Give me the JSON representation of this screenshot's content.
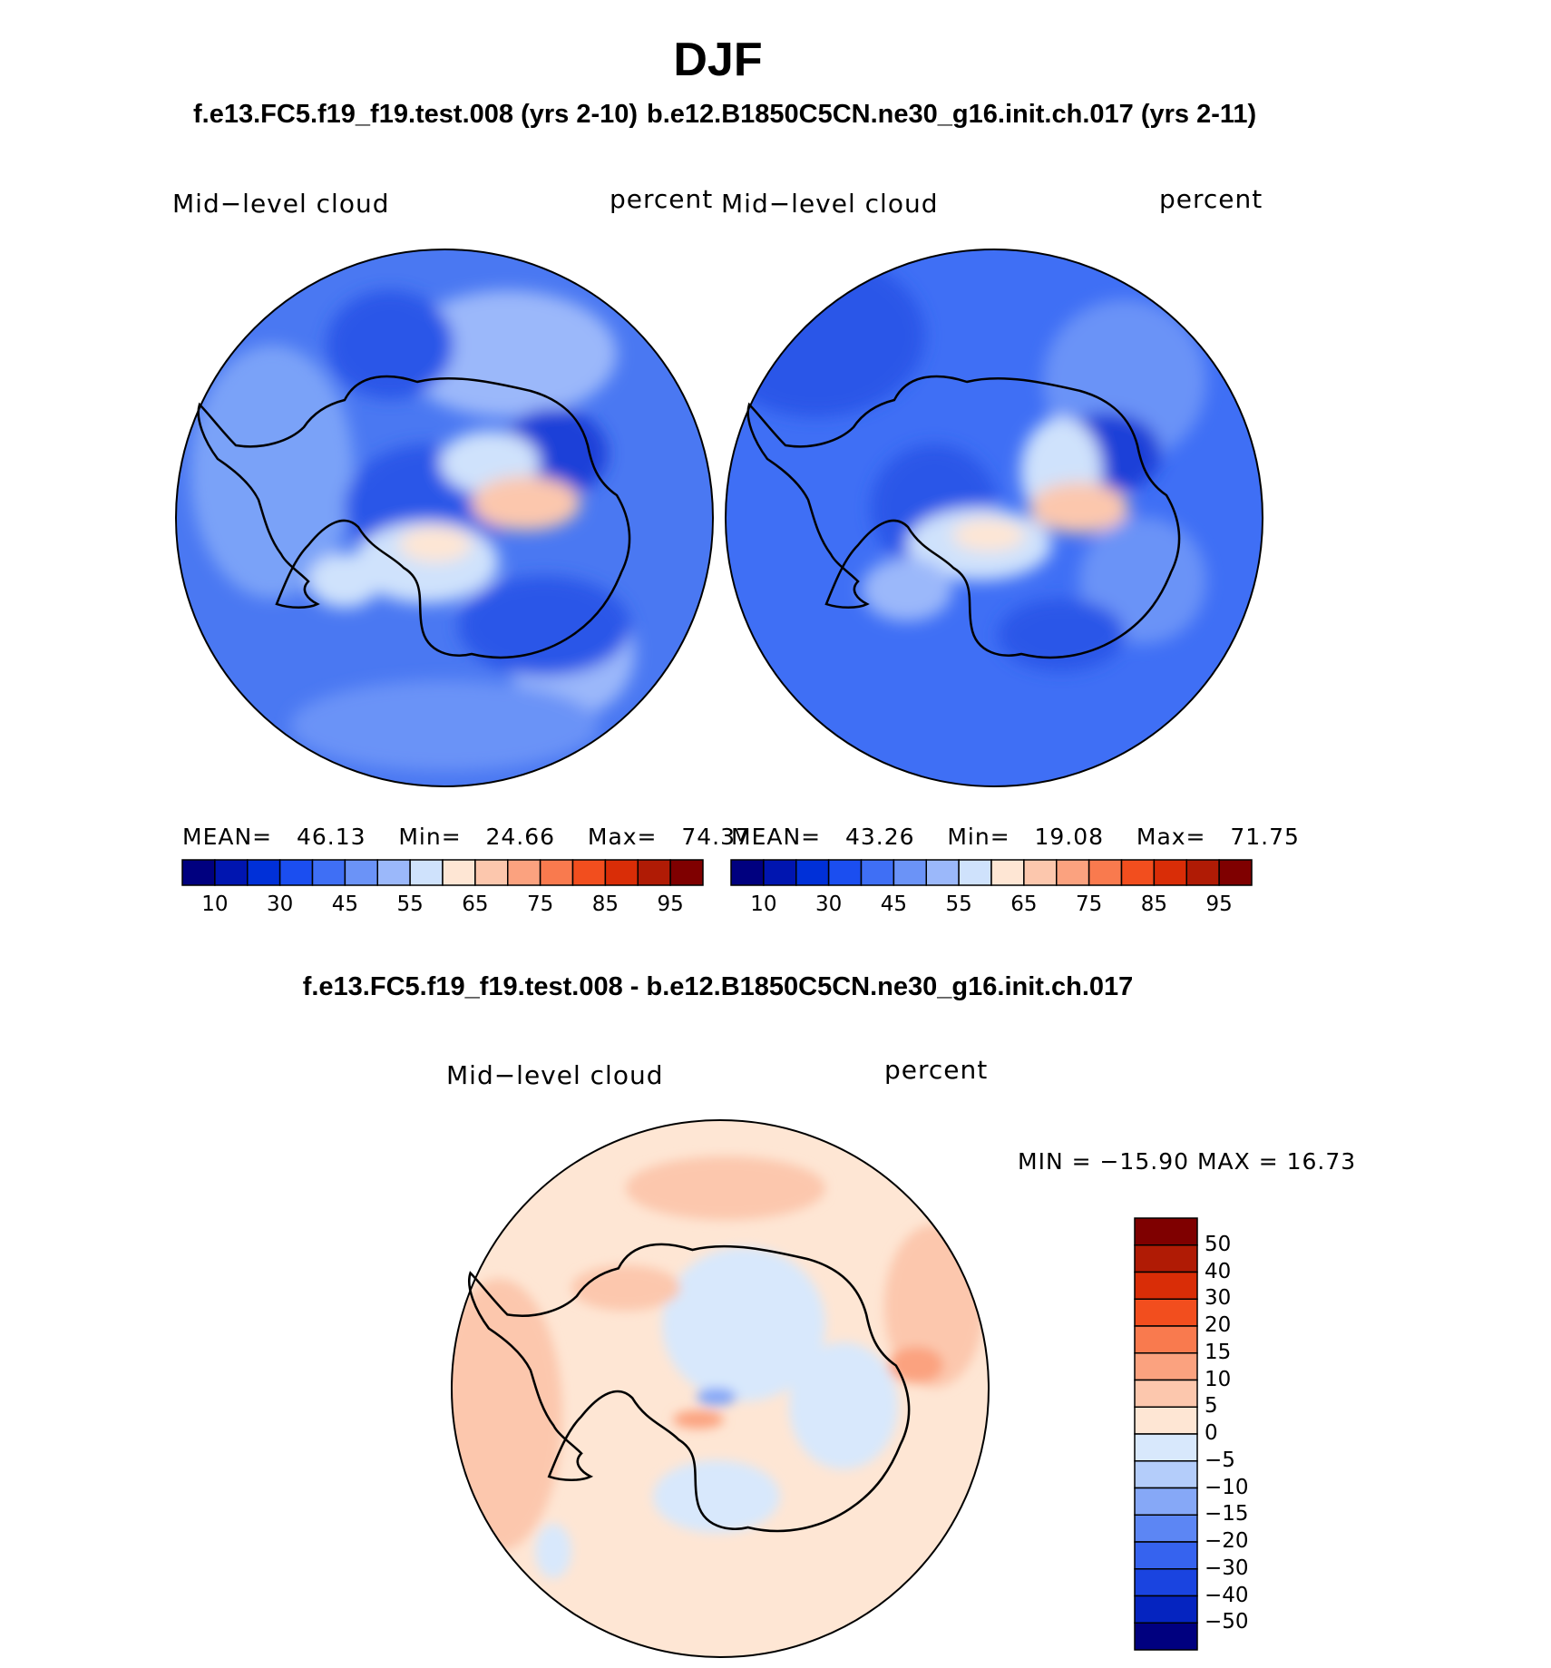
{
  "season_title": "DJF",
  "panels": [
    {
      "run_title": "f.e13.FC5.f19_f19.test.008 (yrs 2-10)",
      "variable": "Mid−level cloud",
      "units": "percent",
      "stats": {
        "mean_label": "MEAN=",
        "mean": "46.13",
        "min_label": "Min=",
        "min": "24.66",
        "max_label": "Max=",
        "max": "74.37"
      }
    },
    {
      "run_title": "b.e12.B1850C5CN.ne30_g16.init.ch.017 (yrs 2-11)",
      "variable": "Mid−level cloud",
      "units": "percent",
      "stats": {
        "mean_label": "MEAN=",
        "mean": "43.26",
        "min_label": "Min=",
        "min": "19.08",
        "max_label": "Max=",
        "max": "71.75"
      }
    }
  ],
  "abs_colorbar": {
    "colors": [
      "#00007f",
      "#0015b0",
      "#0030d8",
      "#1b4ef0",
      "#3f6ff5",
      "#6b93f7",
      "#9bb8fa",
      "#cfe2fc",
      "#fee6d4",
      "#fcc7ad",
      "#fba27f",
      "#f97a4e",
      "#f24e1e",
      "#d92d07",
      "#b01b05",
      "#7f0000"
    ],
    "tick_labels": [
      "10",
      "30",
      "45",
      "55",
      "65",
      "75",
      "85",
      "95"
    ]
  },
  "difference": {
    "title": "f.e13.FC5.f19_f19.test.008 - b.e12.B1850C5CN.ne30_g16.init.ch.017",
    "variable": "Mid−level cloud",
    "units": "percent",
    "minmax": "MIN = −15.90 MAX =  16.73",
    "colorbar": {
      "colors_top_to_bottom": [
        "#7f0000",
        "#b01b05",
        "#d92d07",
        "#f24e1e",
        "#f97a4e",
        "#fba27f",
        "#fcc7ad",
        "#fee6d4",
        "#d8e8fc",
        "#b4cdfa",
        "#86a8f7",
        "#5c86f4",
        "#3663ef",
        "#1a44e0",
        "#0524c0",
        "#00007f"
      ],
      "tick_labels": [
        "50",
        "40",
        "30",
        "20",
        "15",
        "10",
        "5",
        "0",
        "−5",
        "−10",
        "−15",
        "−20",
        "−30",
        "−40",
        "−50"
      ]
    }
  },
  "colors": {
    "ocean_base": "#4a78f2",
    "diff_base": "#fee6d4",
    "coastline": "#000000"
  }
}
